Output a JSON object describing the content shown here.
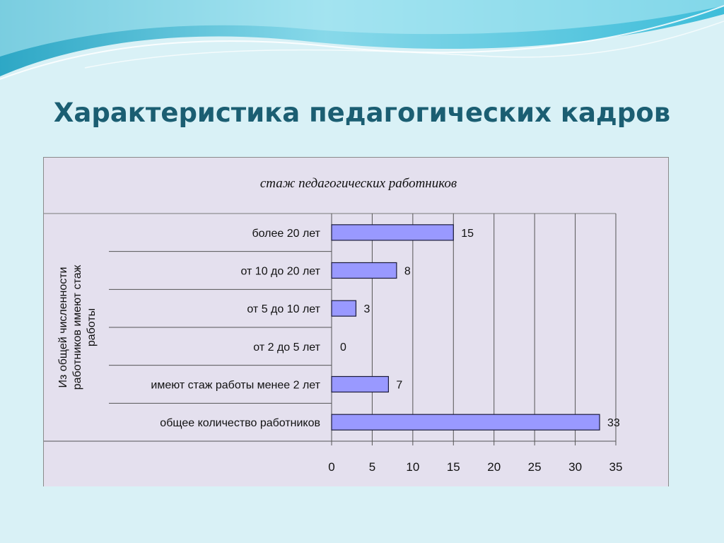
{
  "slide": {
    "title": "Характеристика педагогических кадров"
  },
  "colors": {
    "background": "#d9f1f6",
    "title": "#1b5e72",
    "chart_area": "#e4e0ee",
    "bar_fill": "#9999ff",
    "bar_stroke": "#1a1a3a"
  },
  "chart_data": {
    "type": "bar",
    "orientation": "horizontal",
    "title": "стаж педагогических работников",
    "ylabel_lines": [
      "Из общей численности",
      "работников имеют стаж",
      "работы"
    ],
    "categories": [
      "более 20 лет",
      "от 10 до 20 лет",
      "от 5 до 10 лет",
      "от  2 до 5 лет",
      "имеют стаж работы менее 2 лет",
      "общее количество работников"
    ],
    "values": [
      15,
      8,
      3,
      0,
      7,
      33
    ],
    "xlim": [
      0,
      35
    ],
    "xticks": [
      0,
      5,
      10,
      15,
      20,
      25,
      30,
      35
    ],
    "grid": true,
    "data_labels": true
  }
}
